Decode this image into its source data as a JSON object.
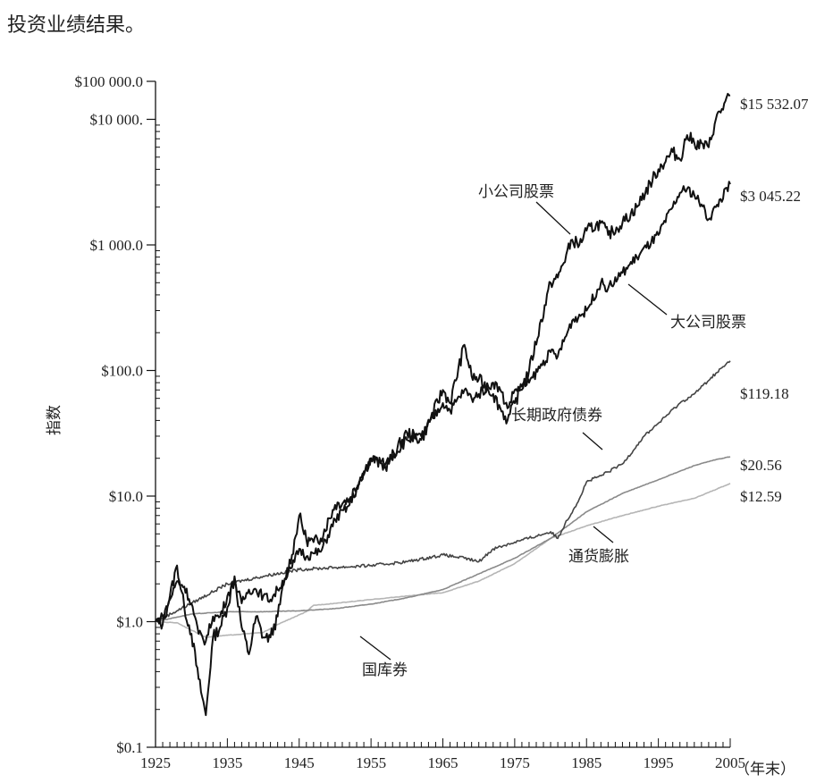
{
  "caption": "投资业绩结果。",
  "chart_data": {
    "type": "line",
    "title": "",
    "xlabel": "（年末）",
    "ylabel": "指数",
    "yscale": "log",
    "xlim": [
      1925,
      2005
    ],
    "ylim": [
      0.1,
      10000
    ],
    "x_ticks": [
      "1925",
      "1935",
      "1945",
      "1955",
      "1965",
      "1975",
      "1985",
      "1995",
      "2005"
    ],
    "y_ticks": [
      {
        "value": 0.1,
        "label": "$0.1"
      },
      {
        "value": 1,
        "label": "$1.0"
      },
      {
        "value": 10,
        "label": "$10.0"
      },
      {
        "value": 100,
        "label": "$100.0"
      },
      {
        "value": 1000,
        "label": "$1 000.0"
      },
      {
        "value": 10000,
        "label": "$10 000."
      }
    ],
    "y_top_label": "$100 000.0",
    "grid": false,
    "series": [
      {
        "name": "小公司股票",
        "color": "#111111",
        "end_label": "$15 532.07",
        "x": [
          1925,
          1926,
          1927,
          1928,
          1929,
          1930,
          1931,
          1932,
          1933,
          1934,
          1935,
          1936,
          1937,
          1938,
          1939,
          1940,
          1941,
          1942,
          1943,
          1944,
          1945,
          1946,
          1947,
          1948,
          1950,
          1952,
          1955,
          1957,
          1960,
          1962,
          1965,
          1966,
          1968,
          1969,
          1970,
          1972,
          1973,
          1974,
          1975,
          1977,
          1980,
          1981,
          1983,
          1984,
          1985,
          1987,
          1988,
          1990,
          1992,
          1995,
          1997,
          1998,
          1999,
          2000,
          2002,
          2003,
          2005
        ],
        "y": [
          1.0,
          0.95,
          1.6,
          2.8,
          1.3,
          0.8,
          0.35,
          0.18,
          0.75,
          0.9,
          1.3,
          2.3,
          0.9,
          0.55,
          1.1,
          0.75,
          0.75,
          1.1,
          2.2,
          3.4,
          7.0,
          4.5,
          4.3,
          4.6,
          8.5,
          9.5,
          20,
          17,
          32,
          28,
          70,
          55,
          160,
          90,
          85,
          65,
          50,
          40,
          55,
          100,
          500,
          550,
          1100,
          1000,
          1300,
          1500,
          1200,
          1500,
          2000,
          4000,
          5500,
          4800,
          7500,
          6500,
          6000,
          10000,
          15532.07
        ]
      },
      {
        "name": "大公司股票",
        "color": "#111111",
        "end_label": "$3 045.22",
        "x": [
          1925,
          1926,
          1927,
          1928,
          1929,
          1930,
          1931,
          1932,
          1933,
          1934,
          1935,
          1936,
          1937,
          1938,
          1939,
          1940,
          1941,
          1942,
          1943,
          1944,
          1945,
          1946,
          1947,
          1948,
          1950,
          1952,
          1955,
          1957,
          1960,
          1962,
          1965,
          1966,
          1968,
          1969,
          1970,
          1972,
          1973,
          1974,
          1975,
          1977,
          1980,
          1981,
          1983,
          1985,
          1987,
          1988,
          1990,
          1992,
          1995,
          1997,
          1998,
          1999,
          2000,
          2001,
          2002,
          2003,
          2005
        ],
        "y": [
          1.0,
          1.1,
          1.5,
          2.1,
          1.9,
          1.4,
          0.8,
          0.7,
          1.1,
          1.1,
          1.6,
          2.1,
          1.4,
          1.8,
          1.8,
          1.6,
          1.5,
          1.8,
          2.2,
          2.7,
          3.8,
          3.3,
          3.5,
          3.6,
          6.5,
          8.5,
          20,
          18,
          28,
          30,
          55,
          48,
          70,
          60,
          65,
          80,
          70,
          50,
          70,
          80,
          140,
          130,
          250,
          300,
          500,
          450,
          600,
          800,
          1200,
          2000,
          2600,
          2800,
          2500,
          2100,
          1600,
          2000,
          3045.22
        ]
      },
      {
        "name": "长期政府债券",
        "color": "#444444",
        "end_label": "$119.18",
        "x": [
          1925,
          1930,
          1935,
          1940,
          1945,
          1950,
          1955,
          1960,
          1965,
          1968,
          1970,
          1972,
          1975,
          1978,
          1980,
          1981,
          1982,
          1984,
          1985,
          1987,
          1990,
          1993,
          1995,
          1998,
          2000,
          2003,
          2005
        ],
        "y": [
          1.0,
          1.4,
          2.0,
          2.3,
          2.6,
          2.7,
          2.8,
          3.0,
          3.4,
          3.2,
          3.0,
          3.8,
          4.3,
          4.8,
          5.2,
          4.6,
          6.0,
          9.5,
          13.0,
          14.5,
          18.0,
          30.0,
          38.0,
          55.0,
          65.0,
          95.0,
          119.18
        ]
      },
      {
        "name": "国库券",
        "color": "#8a8a8a",
        "end_label": "$20.56",
        "x": [
          1925,
          1930,
          1935,
          1940,
          1945,
          1950,
          1955,
          1960,
          1965,
          1970,
          1975,
          1980,
          1985,
          1990,
          1995,
          2000,
          2003,
          2005
        ],
        "y": [
          1.0,
          1.15,
          1.2,
          1.2,
          1.22,
          1.27,
          1.38,
          1.55,
          1.8,
          2.4,
          3.2,
          4.6,
          7.5,
          10.5,
          13.5,
          17.5,
          19.5,
          20.56
        ]
      },
      {
        "name": "通货膨胀",
        "color": "#b5b5b5",
        "end_label": "$12.59",
        "x": [
          1925,
          1928,
          1932,
          1935,
          1940,
          1942,
          1946,
          1947,
          1950,
          1955,
          1960,
          1965,
          1970,
          1975,
          1980,
          1985,
          1990,
          1995,
          2000,
          2005
        ],
        "y": [
          1.0,
          0.98,
          0.75,
          0.78,
          0.82,
          0.95,
          1.2,
          1.35,
          1.4,
          1.5,
          1.6,
          1.7,
          2.1,
          2.9,
          4.6,
          5.8,
          7.0,
          8.3,
          9.6,
          12.59
        ]
      }
    ]
  }
}
